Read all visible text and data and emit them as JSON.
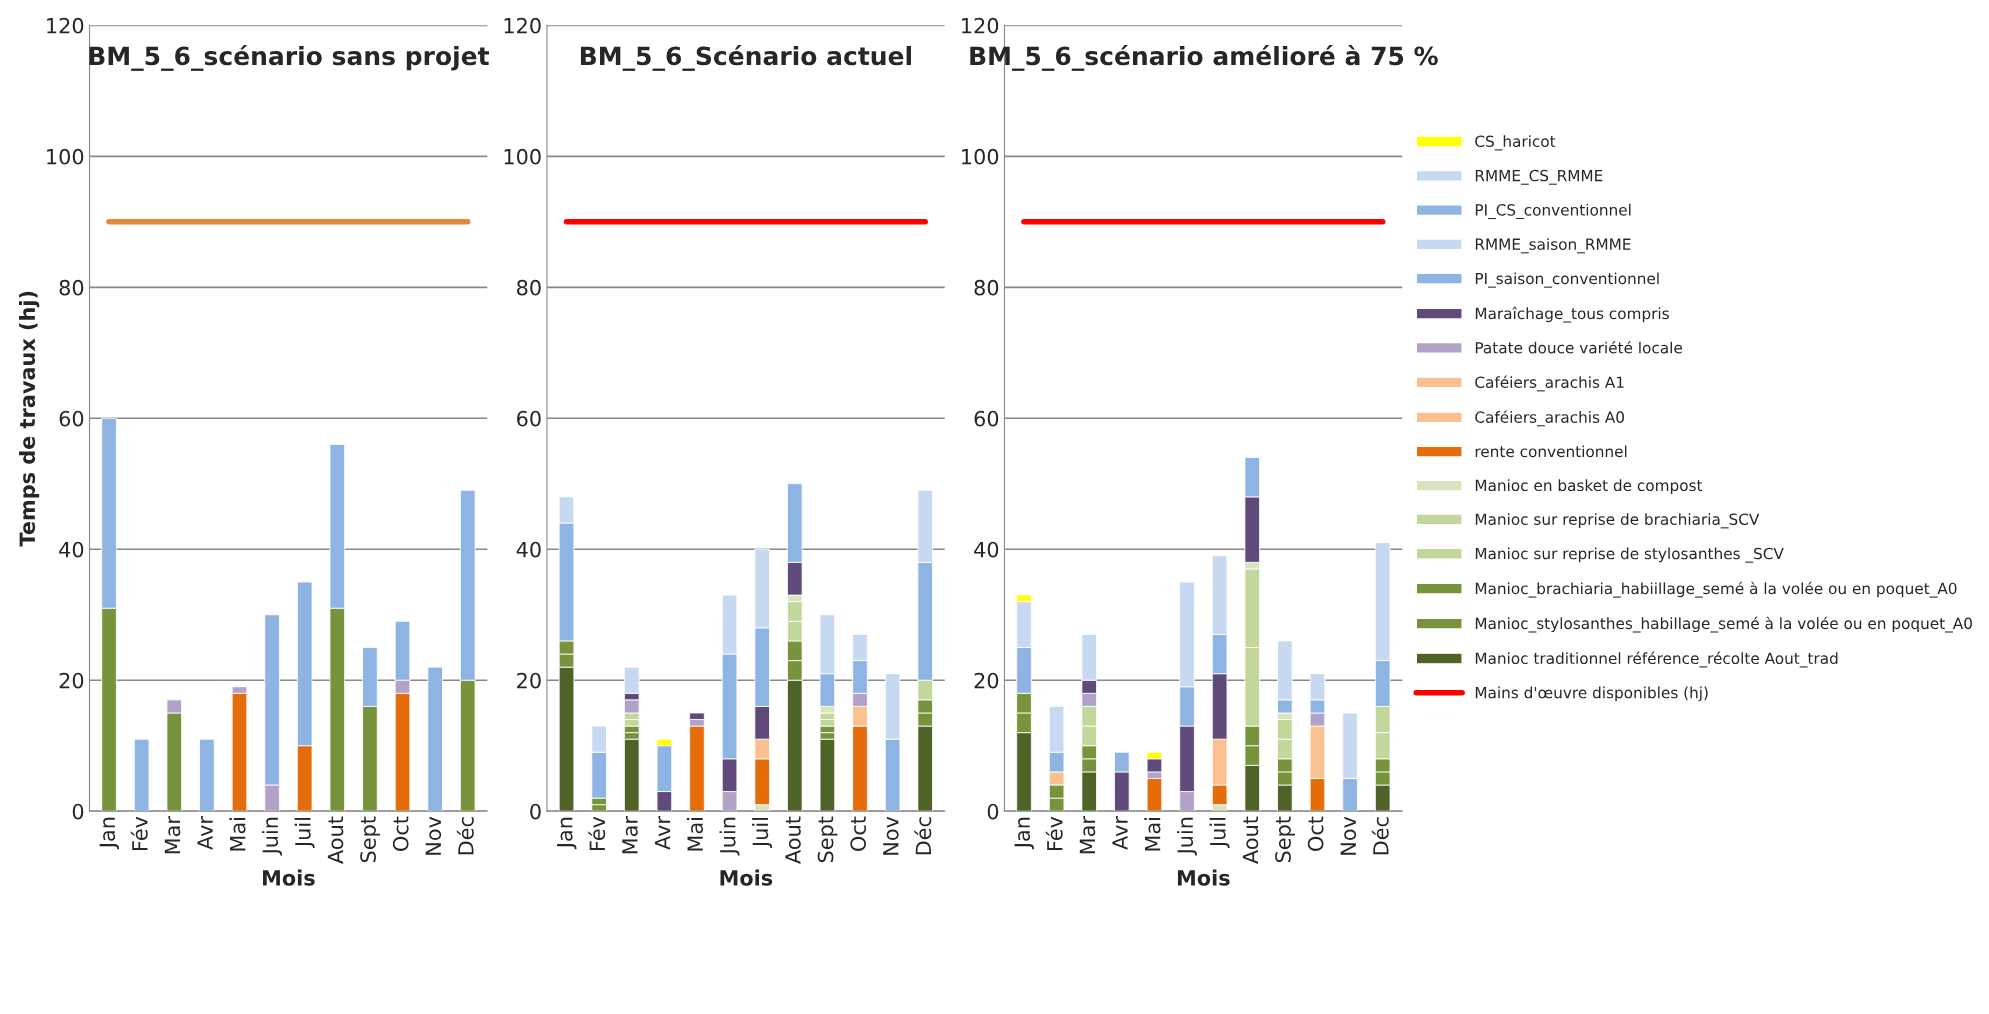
{
  "chart_data": [
    {
      "type": "bar",
      "title": "BM_5_6_scénario sans projet",
      "xlabel": "Mois",
      "ylabel": "Temps de travaux (hj)",
      "stacked": true,
      "ylim": [
        0,
        120
      ],
      "yticks": [
        0,
        20,
        40,
        60,
        80,
        100,
        120
      ],
      "grid": "y",
      "categories": [
        "Jan",
        "Fév",
        "Mar",
        "Avr",
        "Mai",
        "Juin",
        "Juil",
        "Aout",
        "Sept",
        "Oct",
        "Nov",
        "Déc"
      ],
      "series": [
        {
          "color": "#77933c",
          "values": [
            31,
            null,
            15,
            null,
            null,
            null,
            null,
            31,
            16,
            null,
            null,
            20
          ]
        },
        {
          "color": "#e46c0a",
          "values": [
            null,
            null,
            null,
            null,
            18,
            null,
            10,
            null,
            null,
            18,
            null,
            null
          ]
        },
        {
          "color": "#b3a2c7",
          "values": [
            null,
            null,
            2,
            null,
            1,
            4,
            null,
            null,
            null,
            2,
            null,
            null
          ]
        },
        {
          "color": "#8eb4e3",
          "values": [
            29,
            11,
            null,
            11,
            null,
            26,
            25,
            25,
            9,
            9,
            22,
            29
          ]
        },
        {
          "type": "line",
          "color": "#e5883b",
          "values": [
            90,
            90,
            90,
            90,
            90,
            90,
            90,
            90,
            90,
            90,
            90,
            90
          ]
        }
      ]
    },
    {
      "type": "bar",
      "title": "BM_5_6_Scénario actuel",
      "xlabel": "Mois",
      "stacked": true,
      "ylim": [
        0,
        120
      ],
      "yticks": [
        0,
        20,
        40,
        60,
        80,
        100,
        120
      ],
      "grid": "y",
      "categories": [
        "Jan",
        "Fév",
        "Mar",
        "Avr",
        "Mai",
        "Juin",
        "Juil",
        "Aout",
        "Sept",
        "Oct",
        "Nov",
        "Déc"
      ],
      "series": [
        {
          "color": "#4f6228",
          "values": [
            22,
            null,
            11,
            null,
            null,
            null,
            null,
            20,
            11,
            null,
            null,
            13
          ]
        },
        {
          "color": "#77933c",
          "values": [
            2,
            1,
            1,
            null,
            null,
            null,
            null,
            3,
            1,
            null,
            null,
            2
          ]
        },
        {
          "color": "#77933c",
          "values": [
            2,
            1,
            1,
            null,
            null,
            null,
            null,
            3,
            1,
            null,
            null,
            2
          ]
        },
        {
          "color": "#c3d69b",
          "values": [
            null,
            null,
            1,
            null,
            null,
            null,
            null,
            3,
            1,
            null,
            null,
            3
          ]
        },
        {
          "color": "#c3d69b",
          "values": [
            null,
            null,
            1,
            null,
            null,
            null,
            null,
            3,
            1,
            null,
            null,
            null
          ]
        },
        {
          "color": "#d7e4bd",
          "values": [
            null,
            null,
            null,
            null,
            null,
            null,
            1,
            1,
            1,
            null,
            null,
            null
          ]
        },
        {
          "color": "#e46c0a",
          "values": [
            null,
            null,
            null,
            null,
            13,
            null,
            7,
            null,
            null,
            13,
            null,
            null
          ]
        },
        {
          "color": "#fac090",
          "values": [
            null,
            null,
            null,
            null,
            null,
            null,
            3,
            null,
            null,
            3,
            null,
            null
          ]
        },
        {
          "color": "#fac090",
          "values": [
            null,
            null,
            null,
            null,
            null,
            null,
            null,
            null,
            null,
            null,
            null,
            null
          ]
        },
        {
          "color": "#b3a2c7",
          "values": [
            null,
            null,
            2,
            null,
            1,
            3,
            null,
            null,
            null,
            2,
            null,
            null
          ]
        },
        {
          "color": "#604a7b",
          "values": [
            null,
            null,
            1,
            3,
            1,
            5,
            5,
            5,
            null,
            null,
            null,
            null
          ]
        },
        {
          "color": "#8eb4e3",
          "values": [
            18,
            7,
            null,
            7,
            null,
            16,
            12,
            12,
            5,
            5,
            11,
            18
          ]
        },
        {
          "color": "#c6d9f1",
          "values": [
            4,
            4,
            4,
            null,
            null,
            9,
            12,
            null,
            9,
            4,
            10,
            11
          ]
        },
        {
          "color": "#8eb4e3",
          "values": [
            null,
            null,
            null,
            null,
            null,
            null,
            null,
            null,
            null,
            null,
            null,
            null
          ]
        },
        {
          "color": "#c6d9f1",
          "values": [
            null,
            null,
            null,
            null,
            null,
            null,
            null,
            null,
            null,
            null,
            null,
            null
          ]
        },
        {
          "color": "#ffff00",
          "values": [
            null,
            null,
            null,
            1,
            null,
            null,
            null,
            null,
            null,
            null,
            null,
            null
          ]
        },
        {
          "type": "line",
          "color": "#ff0000",
          "values": [
            90,
            90,
            90,
            90,
            90,
            90,
            90,
            90,
            90,
            90,
            90,
            90
          ]
        }
      ]
    },
    {
      "type": "bar",
      "title": "BM_5_6_scénario amélioré à 75 %",
      "xlabel": "Mois",
      "stacked": true,
      "ylim": [
        0,
        120
      ],
      "yticks": [
        0,
        20,
        40,
        60,
        80,
        100,
        120
      ],
      "grid": "y",
      "legend": "right",
      "categories": [
        "Jan",
        "Fév",
        "Mar",
        "Avr",
        "Mai",
        "Juin",
        "Juil",
        "Aout",
        "Sept",
        "Oct",
        "Nov",
        "Déc"
      ],
      "series": [
        {
          "name": "Manioc traditionnel référence_récolte Aout_trad",
          "color": "#4f6228",
          "values": [
            12,
            null,
            6,
            null,
            null,
            null,
            null,
            7,
            4,
            null,
            null,
            4
          ]
        },
        {
          "name": "Manioc_stylosanthes_habillage_semé à la volée ou en poquet_A0",
          "color": "#77933c",
          "values": [
            3,
            2,
            2,
            null,
            null,
            null,
            null,
            3,
            2,
            null,
            null,
            2
          ]
        },
        {
          "name": "Manioc_brachiaria_habiillage_semé à la volée ou en poquet_A0",
          "color": "#77933c",
          "values": [
            3,
            2,
            2,
            null,
            null,
            null,
            null,
            3,
            2,
            null,
            null,
            2
          ]
        },
        {
          "name": "Manioc sur reprise de stylosanthes _SCV",
          "color": "#c3d69b",
          "values": [
            null,
            null,
            3,
            null,
            null,
            null,
            null,
            12,
            3,
            null,
            null,
            4
          ]
        },
        {
          "name": "Manioc sur reprise de brachiaria_SCV",
          "color": "#c3d69b",
          "values": [
            null,
            null,
            3,
            null,
            null,
            null,
            null,
            12,
            3,
            null,
            null,
            4
          ]
        },
        {
          "name": "Manioc en basket de compost",
          "color": "#d7e4bd",
          "values": [
            null,
            null,
            null,
            null,
            null,
            null,
            1,
            1,
            1,
            null,
            null,
            null
          ]
        },
        {
          "name": "rente conventionnel",
          "color": "#e46c0a",
          "values": [
            null,
            null,
            null,
            null,
            5,
            null,
            3,
            null,
            null,
            5,
            null,
            null
          ]
        },
        {
          "name": "Caféiers_arachis A0",
          "color": "#fac090",
          "values": [
            null,
            2,
            null,
            null,
            null,
            null,
            7,
            null,
            null,
            8,
            null,
            null
          ]
        },
        {
          "name": "Caféiers_arachis A1",
          "color": "#fac090",
          "values": [
            null,
            null,
            null,
            null,
            null,
            null,
            null,
            null,
            null,
            null,
            null,
            null
          ]
        },
        {
          "name": "Patate douce variété locale",
          "color": "#b3a2c7",
          "values": [
            null,
            null,
            2,
            null,
            1,
            3,
            null,
            null,
            null,
            2,
            null,
            null
          ]
        },
        {
          "name": "Maraîchage_tous compris",
          "color": "#604a7b",
          "values": [
            null,
            null,
            2,
            6,
            2,
            10,
            10,
            10,
            null,
            null,
            null,
            null
          ]
        },
        {
          "name": "PI_saison_conventionnel",
          "color": "#8eb4e3",
          "values": [
            7,
            3,
            null,
            3,
            null,
            6,
            6,
            6,
            2,
            2,
            5,
            7
          ]
        },
        {
          "name": "RMME_saison_RMME",
          "color": "#c6d9f1",
          "values": [
            7,
            7,
            7,
            null,
            null,
            16,
            12,
            null,
            9,
            4,
            10,
            18
          ]
        },
        {
          "name": "PI_CS_conventionnel",
          "color": "#8eb4e3",
          "values": [
            null,
            null,
            null,
            null,
            null,
            null,
            null,
            null,
            null,
            null,
            null,
            null
          ]
        },
        {
          "name": "RMME_CS_RMME",
          "color": "#c6d9f1",
          "values": [
            null,
            null,
            null,
            null,
            null,
            null,
            null,
            null,
            null,
            null,
            null,
            null
          ]
        },
        {
          "name": "CS_haricot",
          "color": "#ffff00",
          "values": [
            1,
            null,
            null,
            null,
            1,
            null,
            null,
            null,
            null,
            null,
            null,
            null
          ]
        },
        {
          "type": "line",
          "name": "Mains d'œuvre disponibles (hj)",
          "color": "#ff0000",
          "values": [
            90,
            90,
            90,
            90,
            90,
            90,
            90,
            90,
            90,
            90,
            90,
            90
          ]
        }
      ]
    }
  ]
}
